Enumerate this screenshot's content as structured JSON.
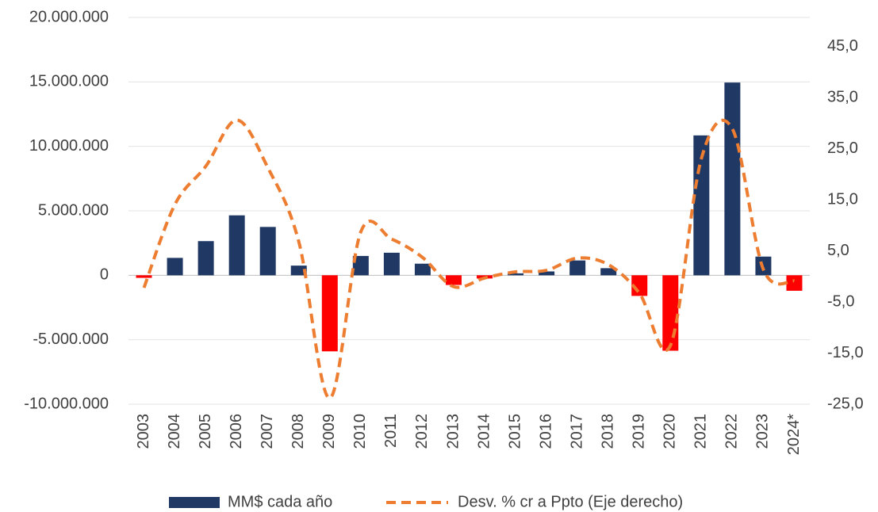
{
  "chart_data": {
    "type": "bar_line",
    "categories": [
      "2003",
      "2004",
      "2005",
      "2006",
      "2007",
      "2008",
      "2009",
      "2010",
      "2011",
      "2012",
      "2013",
      "2014",
      "2015",
      "2016",
      "2017",
      "2018",
      "2019",
      "2020",
      "2021",
      "2022",
      "2023",
      "2024*"
    ],
    "series": [
      {
        "name": "MM$ cada año",
        "type": "bar",
        "color": "#203864",
        "negative_color": "#ff0000",
        "values": [
          -200000,
          1350000,
          2650000,
          4650000,
          3750000,
          750000,
          -5900000,
          1500000,
          1750000,
          900000,
          -750000,
          -250000,
          150000,
          300000,
          1150000,
          550000,
          -1600000,
          -5850000,
          10850000,
          14950000,
          1450000,
          -1200000
        ]
      },
      {
        "name": "Desv. % cr a Ppto (Eje derecho)",
        "type": "line",
        "axis": "y2",
        "color": "#ed7d31",
        "dashed": true,
        "values": [
          -2.2,
          14.1,
          21.6,
          30.6,
          21.3,
          6.8,
          -23.8,
          8.7,
          7.3,
          3.7,
          -2.0,
          -0.3,
          0.9,
          1.2,
          3.6,
          2.3,
          -3.3,
          -13.5,
          23.1,
          28.9,
          1.4,
          -0.9
        ]
      }
    ],
    "ylim": [
      -10000000,
      20000000
    ],
    "yticks": [
      {
        "value": -10000000,
        "label": "-10.000.000"
      },
      {
        "value": -5000000,
        "label": "-5.000.000"
      },
      0,
      {
        "value": 5000000,
        "label": "5.000.000"
      },
      {
        "value": 10000000,
        "label": "10.000.000"
      },
      {
        "value": 15000000,
        "label": "15.000.000"
      },
      {
        "value": 20000000,
        "label": "20.000.000"
      }
    ],
    "y2lim": [
      -25,
      50.7
    ],
    "y2ticks": [
      {
        "value": -25,
        "label": "-25,0"
      },
      {
        "value": -15,
        "label": "-15,0"
      },
      {
        "value": -5,
        "label": "-5,0"
      },
      {
        "value": 5,
        "label": "5,0"
      },
      {
        "value": 15,
        "label": "15,0"
      },
      {
        "value": 25,
        "label": "25,0"
      },
      {
        "value": 35,
        "label": "35,0"
      },
      {
        "value": 45,
        "label": "45,0"
      }
    ],
    "grid": true,
    "legend": "bottom"
  }
}
